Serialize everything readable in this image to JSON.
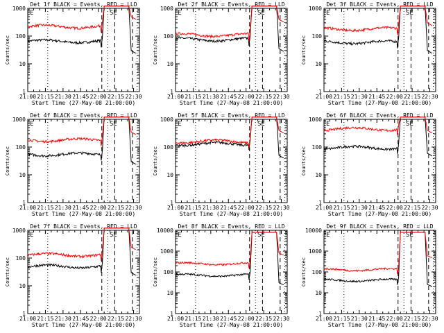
{
  "xlabel": "Start Time (27-May-08 21:00:00)",
  "ylabel": "Counts/sec",
  "x_ticks": [
    "21:00",
    "21:15",
    "21:30",
    "21:45",
    "22:00",
    "22:15",
    "22:30"
  ],
  "y_ticks": [
    "1",
    "10",
    "100",
    "1000"
  ],
  "y_ticks_extended": [
    "1",
    "10",
    "100",
    "1000",
    "10000"
  ],
  "marker_labels": {
    "eclipse": "E",
    "saa_exit": "SE"
  },
  "colors": {
    "events": "#000000",
    "lld": "#ff0000"
  },
  "chart_data": [
    {
      "type": "line",
      "title": "Det 1f BLACK = Events, RED = LLD",
      "x_unit": "minutes after 21:00",
      "x_range": [
        0,
        95
      ],
      "ylim": [
        1,
        1000
      ],
      "log_y": true,
      "series": [
        {
          "name": "Events",
          "color": "#000000",
          "level": 65,
          "end": 30
        },
        {
          "name": "LLD",
          "color": "#ff0000",
          "level": 220,
          "end": 500
        }
      ]
    },
    {
      "type": "line",
      "title": "Det 2f BLACK = Events, RED = LLD",
      "x_unit": "minutes after 21:00",
      "x_range": [
        0,
        95
      ],
      "ylim": [
        1,
        1000
      ],
      "log_y": true,
      "series": [
        {
          "name": "Events",
          "color": "#000000",
          "level": 75,
          "end": 35
        },
        {
          "name": "LLD",
          "color": "#ff0000",
          "level": 110,
          "end": 400
        }
      ]
    },
    {
      "type": "line",
      "title": "Det 3f BLACK = Events, RED = LLD",
      "x_unit": "minutes after 21:00",
      "x_range": [
        0,
        95
      ],
      "ylim": [
        1,
        1000
      ],
      "log_y": true,
      "series": [
        {
          "name": "Events",
          "color": "#000000",
          "level": 60,
          "end": 30
        },
        {
          "name": "LLD",
          "color": "#ff0000",
          "level": 180,
          "end": 300
        }
      ]
    },
    {
      "type": "line",
      "title": "Det 4f BLACK = Events, RED = LLD",
      "x_unit": "minutes after 21:00",
      "x_range": [
        0,
        95
      ],
      "ylim": [
        1,
        1000
      ],
      "log_y": true,
      "series": [
        {
          "name": "Events",
          "color": "#000000",
          "level": 55,
          "end": 30
        },
        {
          "name": "LLD",
          "color": "#ff0000",
          "level": 180,
          "end": 350
        }
      ]
    },
    {
      "type": "line",
      "title": "Det 5f BLACK = Events, RED = LLD",
      "x_unit": "minutes after 21:00",
      "x_range": [
        0,
        95
      ],
      "ylim": [
        1,
        1000
      ],
      "log_y": true,
      "series": [
        {
          "name": "Events",
          "color": "#000000",
          "level": 130,
          "end": 50
        },
        {
          "name": "LLD",
          "color": "#ff0000",
          "level": 160,
          "end": 400
        }
      ]
    },
    {
      "type": "line",
      "title": "Det 6f BLACK = Events, RED = LLD",
      "x_unit": "minutes after 21:00",
      "x_range": [
        0,
        95
      ],
      "ylim": [
        1,
        1000
      ],
      "log_y": true,
      "series": [
        {
          "name": "Events",
          "color": "#000000",
          "level": 95,
          "end": 60
        },
        {
          "name": "LLD",
          "color": "#ff0000",
          "level": 450,
          "end": 400
        }
      ]
    },
    {
      "type": "line",
      "title": "Det 7f BLACK = Events, RED = LLD",
      "x_unit": "minutes after 21:00",
      "x_range": [
        0,
        95
      ],
      "ylim": [
        1,
        1000
      ],
      "log_y": true,
      "series": [
        {
          "name": "Events",
          "color": "#000000",
          "level": 50,
          "end": 30
        },
        {
          "name": "LLD",
          "color": "#ff0000",
          "level": 130,
          "end": 250
        }
      ]
    },
    {
      "type": "line",
      "title": "Det 8f BLACK = Events, RED = LLD",
      "x_unit": "minutes after 21:00",
      "x_range": [
        0,
        95
      ],
      "ylim": [
        1,
        10000
      ],
      "log_y": true,
      "series": [
        {
          "name": "Events",
          "color": "#000000",
          "level": 70,
          "end": 30
        },
        {
          "name": "LLD",
          "color": "#ff0000",
          "level": 250,
          "end": 800
        }
      ]
    },
    {
      "type": "line",
      "title": "Det 9f BLACK = Events, RED = LLD",
      "x_unit": "minutes after 21:00",
      "x_range": [
        0,
        95
      ],
      "ylim": [
        1,
        10000
      ],
      "log_y": true,
      "series": [
        {
          "name": "Events",
          "color": "#000000",
          "level": 40,
          "end": 25
        },
        {
          "name": "LLD",
          "color": "#ff0000",
          "level": 130,
          "end": 600
        }
      ]
    }
  ]
}
